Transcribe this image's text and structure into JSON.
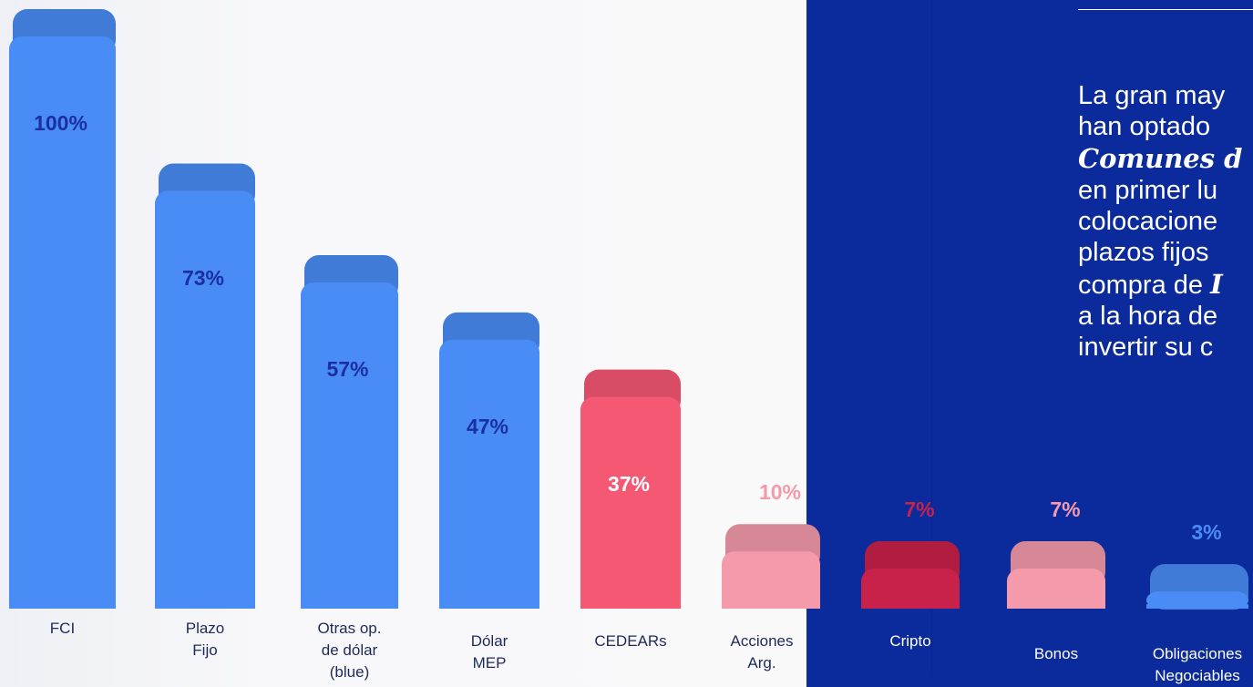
{
  "chart_data": {
    "type": "bar3d",
    "categories": [
      "FCI",
      "Plazo\nFijo",
      "Otras op.\nde dólar\n(blue)",
      "Dólar\nMEP",
      "CEDEARs",
      "Acciones\nArg.",
      "Cripto",
      "Bonos",
      "Obligaciones\nNegociables"
    ],
    "values": [
      100,
      73,
      57,
      47,
      37,
      10,
      7,
      7,
      3
    ],
    "value_labels": [
      "100%",
      "73%",
      "57%",
      "47%",
      "37%",
      "10%",
      "7%",
      "7%",
      "3%"
    ],
    "colors": [
      "#4a8cf5",
      "#4a8cf5",
      "#4a8cf5",
      "#4a8cf5",
      "#f55873",
      "#f49aab",
      "#c8214a",
      "#f49aab",
      "#4a8cf5"
    ]
  },
  "side_text": {
    "lines": [
      [
        {
          "text": "La gran may",
          "italic": false
        }
      ],
      [
        {
          "text": "han optado",
          "italic": false
        }
      ],
      [
        {
          "text": "Comunes d",
          "italic": true
        }
      ],
      [
        {
          "text": "en primer lu",
          "italic": false
        }
      ],
      [
        {
          "text": "colocacione",
          "italic": false
        }
      ],
      [
        {
          "text": "plazos fijos",
          "italic": false
        }
      ],
      [
        {
          "text": "compra de ",
          "italic": false
        },
        {
          "text": "I",
          "italic": true
        }
      ],
      [
        {
          "text": "a la hora de",
          "italic": false
        }
      ],
      [
        {
          "text": "invertir su c",
          "italic": false
        }
      ]
    ]
  }
}
